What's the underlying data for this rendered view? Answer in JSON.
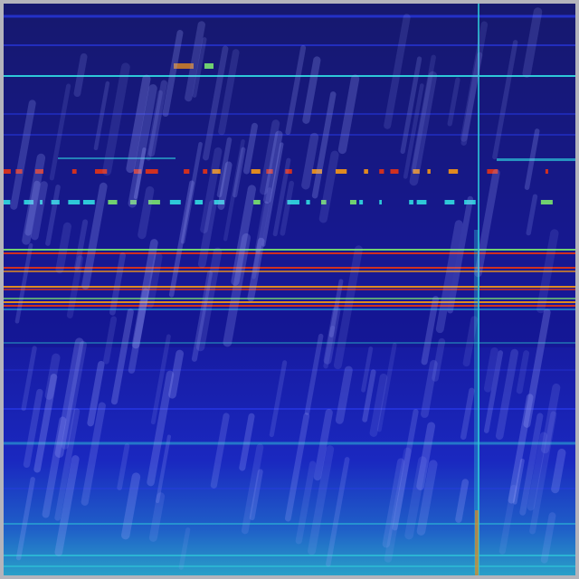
{
  "colors": {
    "frame": "#b4b4bc",
    "background_top": "#16186e",
    "background_bottom": "#1b2fc0",
    "line_blue": "#2a3cf0",
    "line_cyan": "#2ec8d8",
    "line_red": "#d03020",
    "line_orange": "#e08a20",
    "line_green": "#70d070",
    "rain": "#a0a8ff"
  }
}
